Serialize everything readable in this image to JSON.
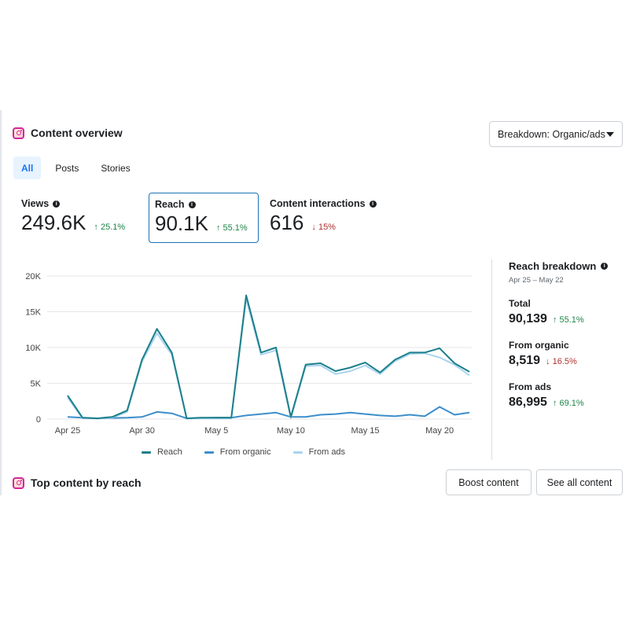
{
  "section": {
    "title": "Content overview"
  },
  "breakdown_select": {
    "label": "Breakdown: Organic/ads"
  },
  "tabs": [
    {
      "label": "All",
      "active": true
    },
    {
      "label": "Posts",
      "active": false
    },
    {
      "label": "Stories",
      "active": false
    }
  ],
  "metrics": [
    {
      "label": "Views",
      "value": "249.6K",
      "change": "↑ 25.1%",
      "direction": "up"
    },
    {
      "label": "Reach",
      "value": "90.1K",
      "change": "↑ 55.1%",
      "direction": "up"
    },
    {
      "label": "Content interactions",
      "value": "616",
      "change": "↓ 15%",
      "direction": "down"
    }
  ],
  "colors": {
    "reach": "#1a7f8a",
    "organic": "#3d8ecb",
    "ads": "#a9d4ee",
    "up": "#1e8449",
    "down": "#b03030"
  },
  "chart_data": {
    "type": "line",
    "x": [
      "Apr 25",
      "Apr 26",
      "Apr 27",
      "Apr 28",
      "Apr 29",
      "Apr 30",
      "May 1",
      "May 2",
      "May 3",
      "May 4",
      "May 5",
      "May 6",
      "May 7",
      "May 8",
      "May 9",
      "May 10",
      "May 11",
      "May 12",
      "May 13",
      "May 14",
      "May 15",
      "May 16",
      "May 17",
      "May 18",
      "May 19",
      "May 20",
      "May 21",
      "May 22"
    ],
    "xticks": [
      "Apr 25",
      "Apr 30",
      "May 5",
      "May 10",
      "May 15",
      "May 20"
    ],
    "yticks": [
      "0",
      "5K",
      "10K",
      "15K",
      "20K"
    ],
    "ylim": [
      0,
      20000
    ],
    "grid": true,
    "legend_position": "bottom",
    "series": [
      {
        "name": "Reach",
        "values": [
          3300,
          200,
          100,
          300,
          1200,
          8300,
          12600,
          9300,
          100,
          200,
          200,
          200,
          17300,
          9300,
          10000,
          300,
          7600,
          7800,
          6700,
          7200,
          7900,
          6500,
          8300,
          9300,
          9300,
          9900,
          7800,
          6600
        ]
      },
      {
        "name": "From organic",
        "values": [
          300,
          200,
          100,
          150,
          200,
          300,
          1000,
          800,
          100,
          150,
          200,
          200,
          500,
          700,
          900,
          300,
          300,
          600,
          700,
          900,
          700,
          500,
          400,
          600,
          400,
          1700,
          600,
          900
        ]
      },
      {
        "name": "From ads",
        "values": [
          3000,
          100,
          100,
          200,
          1000,
          8000,
          12000,
          9000,
          100,
          100,
          100,
          100,
          16800,
          9000,
          9600,
          100,
          7400,
          7500,
          6300,
          6700,
          7500,
          6300,
          8100,
          9100,
          9200,
          8600,
          7600,
          6100
        ]
      }
    ]
  },
  "reach_breakdown": {
    "title": "Reach breakdown",
    "range": "Apr 25 – May 22",
    "items": [
      {
        "label": "Total",
        "value": "90,139",
        "change": "↑ 55.1%",
        "direction": "up"
      },
      {
        "label": "From organic",
        "value": "8,519",
        "change": "↓ 16.5%",
        "direction": "down"
      },
      {
        "label": "From ads",
        "value": "86,995",
        "change": "↑ 69.1%",
        "direction": "up"
      }
    ]
  },
  "top_content": {
    "title": "Top content by reach"
  },
  "actions": {
    "boost": "Boost content",
    "see_all": "See all content"
  }
}
